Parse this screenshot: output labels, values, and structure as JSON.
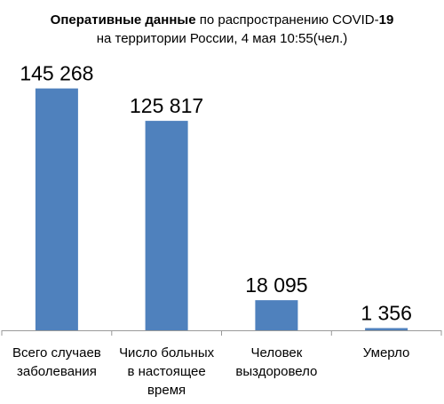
{
  "chart_data": {
    "type": "bar",
    "title": {
      "line1_bold1": "Оперативные данные",
      "line1_regular": " по распространению COVID-",
      "line1_bold2": "19",
      "line2": "на территории России, 4 мая 10:55(чел.)"
    },
    "categories": [
      [
        "Всего случаев",
        "заболевания"
      ],
      [
        "Число больных",
        "в настоящее",
        "время"
      ],
      [
        "Человек",
        "выздоровело"
      ],
      [
        "Умерло"
      ]
    ],
    "values": [
      145268,
      125817,
      18095,
      1356
    ],
    "value_labels": [
      "145 268",
      "125 817",
      "18 095",
      "1 356"
    ],
    "ylim": [
      0,
      160000
    ],
    "grid": false,
    "legend": "none",
    "colors": {
      "bar": "#4f81bd",
      "axis": "#9a9a9a"
    }
  }
}
